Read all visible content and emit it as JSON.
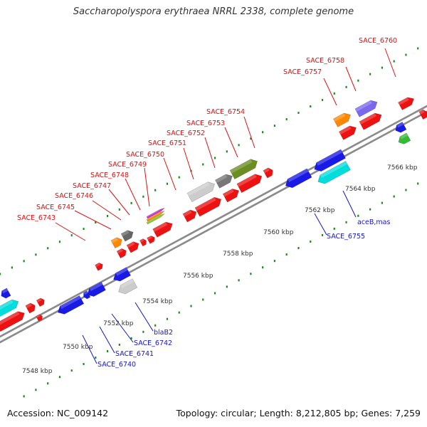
{
  "title": "Saccharopolyspora erythraea NRRL 2338, complete genome",
  "footer": {
    "accession": "Accession: NC_009142",
    "summary": "Topology: circular; Length: 8,212,805 bp; Genes: 7,259"
  },
  "colors": {
    "backbone": "#8a8a8a",
    "tick": "#1f8a1f",
    "label_forward": "#dd1111",
    "label_reverse": "#1515cc",
    "ruler_text": "#333333"
  },
  "ruler": [
    {
      "label": "7548 kbp"
    },
    {
      "label": "7550 kbp"
    },
    {
      "label": "7552 kbp"
    },
    {
      "label": "7554 kbp"
    },
    {
      "label": "7556 kbp"
    },
    {
      "label": "7558 kbp"
    },
    {
      "label": "7560 kbp"
    },
    {
      "label": "7562 kbp"
    },
    {
      "label": "7564 kbp"
    },
    {
      "label": "7566 kbp"
    }
  ],
  "gene_labels": [
    {
      "text": "SACE_6743",
      "strand": "forward"
    },
    {
      "text": "SACE_6745",
      "strand": "forward"
    },
    {
      "text": "SACE_6746",
      "strand": "forward"
    },
    {
      "text": "SACE_6747",
      "strand": "forward"
    },
    {
      "text": "SACE_6748",
      "strand": "forward"
    },
    {
      "text": "SACE_6749",
      "strand": "forward"
    },
    {
      "text": "SACE_6750",
      "strand": "forward"
    },
    {
      "text": "SACE_6751",
      "strand": "forward"
    },
    {
      "text": "SACE_6752",
      "strand": "forward"
    },
    {
      "text": "SACE_6753",
      "strand": "forward"
    },
    {
      "text": "SACE_6754",
      "strand": "forward"
    },
    {
      "text": "SACE_6757",
      "strand": "forward"
    },
    {
      "text": "SACE_6758",
      "strand": "forward"
    },
    {
      "text": "SACE_6760",
      "strand": "forward"
    },
    {
      "text": "blaB2",
      "strand": "reverse"
    },
    {
      "text": "SACE_6742",
      "strand": "reverse"
    },
    {
      "text": "SACE_6741",
      "strand": "reverse"
    },
    {
      "text": "SACE_6740",
      "strand": "reverse"
    },
    {
      "text": "SACE_6755",
      "strand": "reverse"
    },
    {
      "text": "aceB,mas",
      "strand": "reverse"
    }
  ],
  "features": [
    {
      "color": "#00dddd",
      "strand": "forward"
    },
    {
      "color": "#ee1111",
      "strand": "forward"
    },
    {
      "color": "#ee1111",
      "strand": "forward"
    },
    {
      "color": "#ee1111",
      "strand": "forward"
    },
    {
      "color": "#ee1111",
      "strand": "forward"
    },
    {
      "color": "#ff8800",
      "strand": "forward"
    },
    {
      "color": "#666666",
      "strand": "forward"
    },
    {
      "color": "#ee1111",
      "strand": "forward"
    },
    {
      "color": "#ee1111",
      "strand": "forward"
    },
    {
      "color": "#ee1111",
      "strand": "forward"
    },
    {
      "color": "#ee1111",
      "strand": "forward"
    },
    {
      "color": "#ee1111",
      "strand": "forward"
    },
    {
      "color": "#cccccc",
      "strand": "forward"
    },
    {
      "color": "#777777",
      "strand": "forward"
    },
    {
      "color": "#6b8e23",
      "strand": "forward"
    },
    {
      "color": "#ee1111",
      "strand": "forward"
    },
    {
      "color": "#ee1111",
      "strand": "forward"
    },
    {
      "color": "#ee1111",
      "strand": "forward"
    },
    {
      "color": "#ee1111",
      "strand": "forward"
    },
    {
      "color": "#ee1111",
      "strand": "forward"
    },
    {
      "color": "#ff8800",
      "strand": "forward"
    },
    {
      "color": "#7b68ee",
      "strand": "forward"
    },
    {
      "color": "#ee1111",
      "strand": "forward"
    },
    {
      "color": "#ee1111",
      "strand": "forward"
    },
    {
      "color": "#ee1111",
      "strand": "forward"
    },
    {
      "color": "#ee1111",
      "strand": "forward"
    },
    {
      "color": "#ee1111",
      "strand": "forward"
    },
    {
      "color": "#1a1ae6",
      "strand": "reverse"
    },
    {
      "color": "#1a1ae6",
      "strand": "reverse"
    },
    {
      "color": "#1a1ae6",
      "strand": "reverse"
    },
    {
      "color": "#1a1ae6",
      "strand": "reverse"
    },
    {
      "color": "#cccccc",
      "strand": "reverse"
    },
    {
      "color": "#1a1ae6",
      "strand": "reverse"
    },
    {
      "color": "#1a1ae6",
      "strand": "reverse"
    },
    {
      "color": "#00dddd",
      "strand": "reverse"
    },
    {
      "color": "#1a1ae6",
      "strand": "reverse"
    },
    {
      "color": "#33bb33",
      "strand": "reverse"
    },
    {
      "color": "#1a1ae6",
      "strand": "reverse"
    },
    {
      "color": "#cc33cc",
      "strand": "forward"
    },
    {
      "color": "#ff8800",
      "strand": "forward"
    },
    {
      "color": "#88cc22",
      "strand": "forward"
    }
  ]
}
